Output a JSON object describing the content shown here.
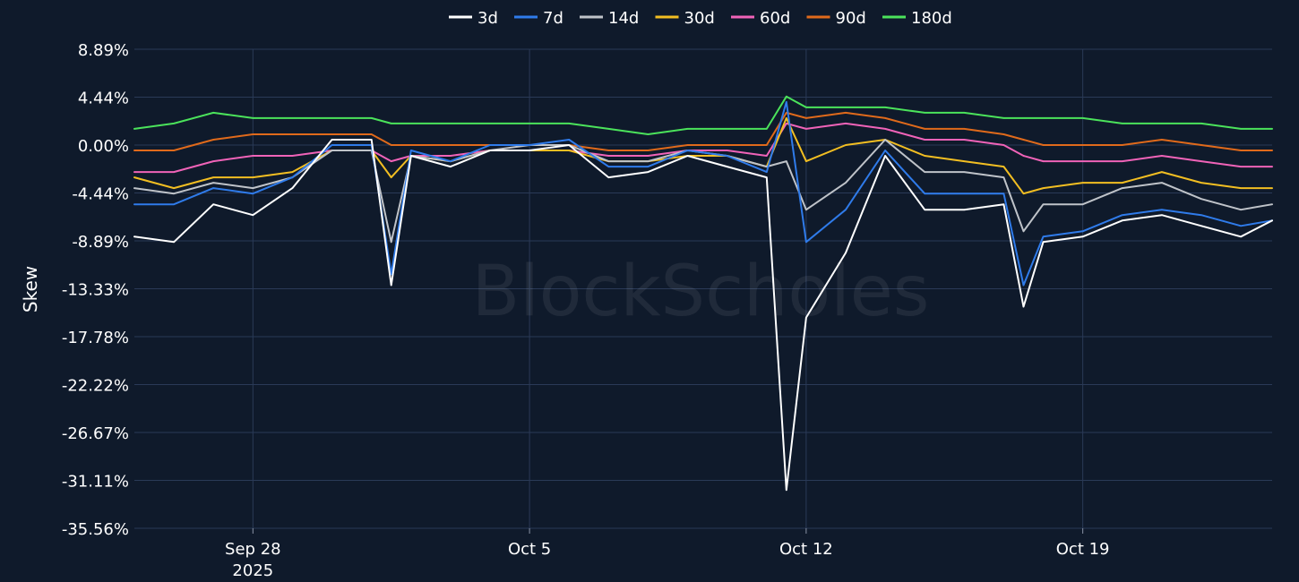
{
  "chart_data": {
    "type": "line",
    "ylabel": "Skew",
    "watermark": "BlockScholes",
    "grid": true,
    "legend_position": "top-center",
    "xlim": [
      "2025-09-25T00:00",
      "2025-10-23T19:00"
    ],
    "ylim": [
      -35.56,
      8.89
    ],
    "y_ticks": [
      "8.89%",
      "4.44%",
      "0.00%",
      "-4.44%",
      "-8.89%",
      "-13.33%",
      "-17.78%",
      "-22.22%",
      "-26.67%",
      "-31.11%",
      "-35.56%"
    ],
    "x_ticks": [
      {
        "date": "2025-09-28",
        "label": "Sep 28",
        "sublabel": "2025"
      },
      {
        "date": "2025-10-05",
        "label": "Oct 5",
        "sublabel": ""
      },
      {
        "date": "2025-10-12",
        "label": "Oct 12",
        "sublabel": ""
      },
      {
        "date": "2025-10-19",
        "label": "Oct 19",
        "sublabel": ""
      }
    ],
    "x": [
      "2025-09-25",
      "2025-09-26",
      "2025-09-27",
      "2025-09-28",
      "2025-09-29",
      "2025-09-30",
      "2025-10-01",
      "2025-10-01T12:00",
      "2025-10-02",
      "2025-10-03",
      "2025-10-04",
      "2025-10-05",
      "2025-10-06",
      "2025-10-07",
      "2025-10-08",
      "2025-10-09",
      "2025-10-10",
      "2025-10-11",
      "2025-10-11T12:00",
      "2025-10-12",
      "2025-10-13",
      "2025-10-14",
      "2025-10-15",
      "2025-10-16",
      "2025-10-17",
      "2025-10-17T12:00",
      "2025-10-18",
      "2025-10-19",
      "2025-10-20",
      "2025-10-21",
      "2025-10-22",
      "2025-10-23",
      "2025-10-23T19:00"
    ],
    "series": [
      {
        "name": "3d",
        "color": "#ffffff",
        "values": [
          -8.5,
          -9.0,
          -5.5,
          -6.5,
          -4.0,
          0.5,
          0.5,
          -13.0,
          -1.0,
          -2.0,
          -0.5,
          -0.5,
          0.0,
          -3.0,
          -2.5,
          -1.0,
          -2.0,
          -3.0,
          -32.0,
          -16.0,
          -10.0,
          -1.0,
          -6.0,
          -6.0,
          -5.5,
          -15.0,
          -9.0,
          -8.5,
          -7.0,
          -6.5,
          -7.5,
          -8.5,
          -7.0
        ]
      },
      {
        "name": "7d",
        "color": "#2f7bea",
        "values": [
          -5.5,
          -5.5,
          -4.0,
          -4.5,
          -3.0,
          0.0,
          0.0,
          -12.0,
          -0.5,
          -1.5,
          0.0,
          0.0,
          0.5,
          -2.0,
          -2.0,
          -0.5,
          -1.0,
          -2.5,
          4.0,
          -9.0,
          -6.0,
          -0.5,
          -4.5,
          -4.5,
          -4.5,
          -13.0,
          -8.5,
          -8.0,
          -6.5,
          -6.0,
          -6.5,
          -7.5,
          -7.0
        ]
      },
      {
        "name": "14d",
        "color": "#bfc3c9",
        "values": [
          -4.0,
          -4.5,
          -3.5,
          -4.0,
          -3.0,
          -0.5,
          -0.5,
          -9.0,
          -1.0,
          -1.5,
          -0.5,
          0.0,
          0.0,
          -1.5,
          -1.5,
          -0.5,
          -1.0,
          -2.0,
          -1.5,
          -6.0,
          -3.5,
          0.5,
          -2.5,
          -2.5,
          -3.0,
          -8.0,
          -5.5,
          -5.5,
          -4.0,
          -3.5,
          -5.0,
          -6.0,
          -5.5
        ]
      },
      {
        "name": "30d",
        "color": "#f2be22",
        "values": [
          -3.0,
          -4.0,
          -3.0,
          -3.0,
          -2.5,
          -0.5,
          -0.5,
          -3.0,
          -1.0,
          -1.5,
          -0.5,
          -0.5,
          -0.5,
          -1.5,
          -1.5,
          -1.0,
          -1.0,
          -2.0,
          2.5,
          -1.5,
          0.0,
          0.5,
          -1.0,
          -1.5,
          -2.0,
          -4.5,
          -4.0,
          -3.5,
          -3.5,
          -2.5,
          -3.5,
          -4.0,
          -4.0
        ]
      },
      {
        "name": "60d",
        "color": "#f063b8",
        "values": [
          -2.5,
          -2.5,
          -1.5,
          -1.0,
          -1.0,
          -0.5,
          -0.5,
          -1.5,
          -1.0,
          -1.0,
          -0.5,
          -0.5,
          -0.5,
          -1.0,
          -1.0,
          -0.5,
          -0.5,
          -1.0,
          2.0,
          1.5,
          2.0,
          1.5,
          0.5,
          0.5,
          0.0,
          -1.0,
          -1.5,
          -1.5,
          -1.5,
          -1.0,
          -1.5,
          -2.0,
          -2.0
        ]
      },
      {
        "name": "90d",
        "color": "#e06a1b",
        "values": [
          -0.5,
          -0.5,
          0.5,
          1.0,
          1.0,
          1.0,
          1.0,
          0.0,
          0.0,
          0.0,
          0.0,
          0.0,
          0.0,
          -0.5,
          -0.5,
          0.0,
          0.0,
          0.0,
          3.0,
          2.5,
          3.0,
          2.5,
          1.5,
          1.5,
          1.0,
          0.5,
          0.0,
          0.0,
          0.0,
          0.5,
          0.0,
          -0.5,
          -0.5
        ]
      },
      {
        "name": "180d",
        "color": "#4be35b",
        "values": [
          1.5,
          2.0,
          3.0,
          2.5,
          2.5,
          2.5,
          2.5,
          2.0,
          2.0,
          2.0,
          2.0,
          2.0,
          2.0,
          1.5,
          1.0,
          1.5,
          1.5,
          1.5,
          4.5,
          3.5,
          3.5,
          3.5,
          3.0,
          3.0,
          2.5,
          2.5,
          2.5,
          2.5,
          2.0,
          2.0,
          2.0,
          1.5,
          1.5
        ]
      }
    ]
  }
}
